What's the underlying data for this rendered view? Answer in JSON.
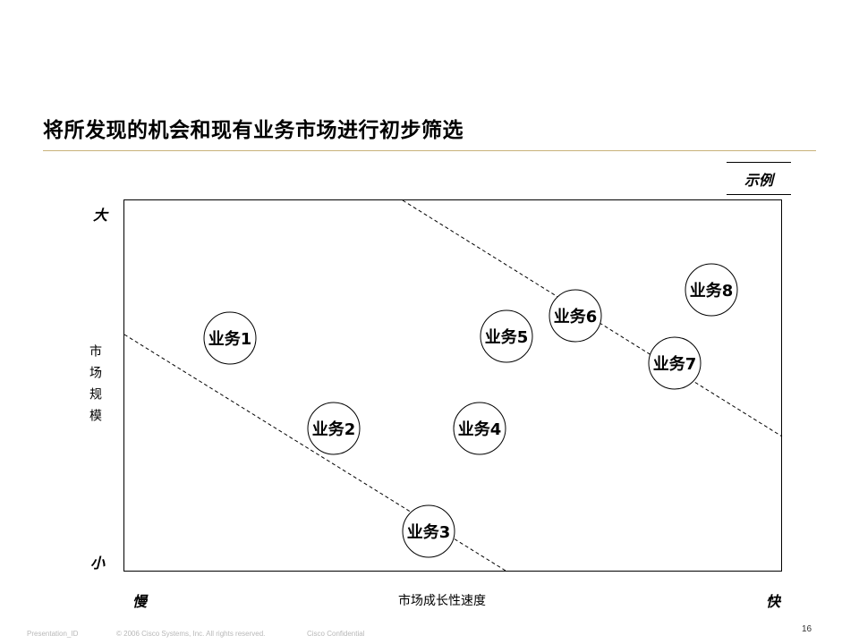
{
  "title": "将所发现的机会和现有业务市场进行初步筛选",
  "example_label": "示例",
  "y_axis": {
    "top": "大",
    "bottom": "小",
    "label": "市场规模"
  },
  "x_axis": {
    "left": "慢",
    "right": "快",
    "label": "市场成长性速度"
  },
  "businesses": [
    {
      "label": "业务1"
    },
    {
      "label": "业务2"
    },
    {
      "label": "业务3"
    },
    {
      "label": "业务4"
    },
    {
      "label": "业务5"
    },
    {
      "label": "业务6"
    },
    {
      "label": "业务7"
    },
    {
      "label": "业务8"
    }
  ],
  "footer": {
    "presentation_id": "Presentation_ID",
    "copyright": "© 2006 Cisco Systems, Inc. All rights reserved.",
    "confidential": "Cisco Confidential",
    "page_number": "16"
  },
  "colors": {
    "rule": "#c8b27a",
    "footer_text": "#b8b8b8"
  }
}
